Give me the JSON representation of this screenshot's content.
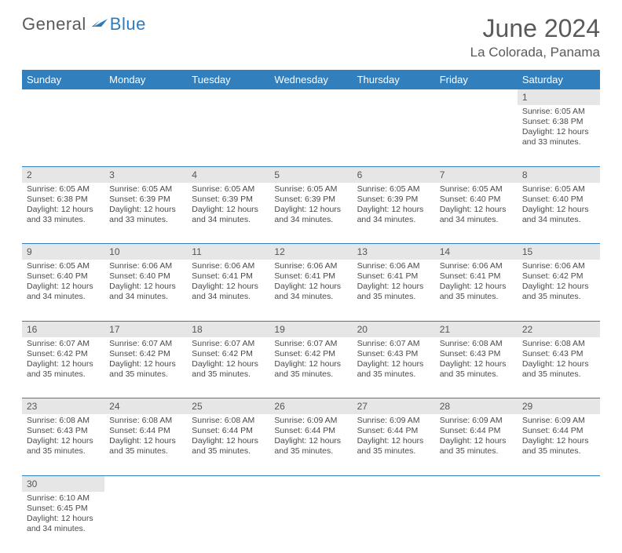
{
  "brand": {
    "part1": "General",
    "part2": "Blue",
    "icon_color": "#2b7bbd"
  },
  "title": "June 2024",
  "location": "La Colorada, Panama",
  "colors": {
    "header_bg": "#327fbd",
    "header_fg": "#ffffff",
    "daynum_bg": "#e6e6e6",
    "text": "#4a4a4a",
    "rule": "#327fbd"
  },
  "typography": {
    "title_fontsize": 32,
    "location_fontsize": 17,
    "weekday_fontsize": 13,
    "daynum_fontsize": 12,
    "body_fontsize": 10.5
  },
  "weekdays": [
    "Sunday",
    "Monday",
    "Tuesday",
    "Wednesday",
    "Thursday",
    "Friday",
    "Saturday"
  ],
  "layout": {
    "columns": 7,
    "week_rows": 6,
    "first_weekday_index": 6
  },
  "days": [
    {
      "n": 1,
      "sr": "6:05 AM",
      "ss": "6:38 PM",
      "dl": "12 hours and 33 minutes."
    },
    {
      "n": 2,
      "sr": "6:05 AM",
      "ss": "6:38 PM",
      "dl": "12 hours and 33 minutes."
    },
    {
      "n": 3,
      "sr": "6:05 AM",
      "ss": "6:39 PM",
      "dl": "12 hours and 33 minutes."
    },
    {
      "n": 4,
      "sr": "6:05 AM",
      "ss": "6:39 PM",
      "dl": "12 hours and 34 minutes."
    },
    {
      "n": 5,
      "sr": "6:05 AM",
      "ss": "6:39 PM",
      "dl": "12 hours and 34 minutes."
    },
    {
      "n": 6,
      "sr": "6:05 AM",
      "ss": "6:39 PM",
      "dl": "12 hours and 34 minutes."
    },
    {
      "n": 7,
      "sr": "6:05 AM",
      "ss": "6:40 PM",
      "dl": "12 hours and 34 minutes."
    },
    {
      "n": 8,
      "sr": "6:05 AM",
      "ss": "6:40 PM",
      "dl": "12 hours and 34 minutes."
    },
    {
      "n": 9,
      "sr": "6:05 AM",
      "ss": "6:40 PM",
      "dl": "12 hours and 34 minutes."
    },
    {
      "n": 10,
      "sr": "6:06 AM",
      "ss": "6:40 PM",
      "dl": "12 hours and 34 minutes."
    },
    {
      "n": 11,
      "sr": "6:06 AM",
      "ss": "6:41 PM",
      "dl": "12 hours and 34 minutes."
    },
    {
      "n": 12,
      "sr": "6:06 AM",
      "ss": "6:41 PM",
      "dl": "12 hours and 34 minutes."
    },
    {
      "n": 13,
      "sr": "6:06 AM",
      "ss": "6:41 PM",
      "dl": "12 hours and 35 minutes."
    },
    {
      "n": 14,
      "sr": "6:06 AM",
      "ss": "6:41 PM",
      "dl": "12 hours and 35 minutes."
    },
    {
      "n": 15,
      "sr": "6:06 AM",
      "ss": "6:42 PM",
      "dl": "12 hours and 35 minutes."
    },
    {
      "n": 16,
      "sr": "6:07 AM",
      "ss": "6:42 PM",
      "dl": "12 hours and 35 minutes."
    },
    {
      "n": 17,
      "sr": "6:07 AM",
      "ss": "6:42 PM",
      "dl": "12 hours and 35 minutes."
    },
    {
      "n": 18,
      "sr": "6:07 AM",
      "ss": "6:42 PM",
      "dl": "12 hours and 35 minutes."
    },
    {
      "n": 19,
      "sr": "6:07 AM",
      "ss": "6:42 PM",
      "dl": "12 hours and 35 minutes."
    },
    {
      "n": 20,
      "sr": "6:07 AM",
      "ss": "6:43 PM",
      "dl": "12 hours and 35 minutes."
    },
    {
      "n": 21,
      "sr": "6:08 AM",
      "ss": "6:43 PM",
      "dl": "12 hours and 35 minutes."
    },
    {
      "n": 22,
      "sr": "6:08 AM",
      "ss": "6:43 PM",
      "dl": "12 hours and 35 minutes."
    },
    {
      "n": 23,
      "sr": "6:08 AM",
      "ss": "6:43 PM",
      "dl": "12 hours and 35 minutes."
    },
    {
      "n": 24,
      "sr": "6:08 AM",
      "ss": "6:44 PM",
      "dl": "12 hours and 35 minutes."
    },
    {
      "n": 25,
      "sr": "6:08 AM",
      "ss": "6:44 PM",
      "dl": "12 hours and 35 minutes."
    },
    {
      "n": 26,
      "sr": "6:09 AM",
      "ss": "6:44 PM",
      "dl": "12 hours and 35 minutes."
    },
    {
      "n": 27,
      "sr": "6:09 AM",
      "ss": "6:44 PM",
      "dl": "12 hours and 35 minutes."
    },
    {
      "n": 28,
      "sr": "6:09 AM",
      "ss": "6:44 PM",
      "dl": "12 hours and 35 minutes."
    },
    {
      "n": 29,
      "sr": "6:09 AM",
      "ss": "6:44 PM",
      "dl": "12 hours and 35 minutes."
    },
    {
      "n": 30,
      "sr": "6:10 AM",
      "ss": "6:45 PM",
      "dl": "12 hours and 34 minutes."
    }
  ],
  "labels": {
    "sunrise": "Sunrise:",
    "sunset": "Sunset:",
    "daylight": "Daylight:"
  }
}
